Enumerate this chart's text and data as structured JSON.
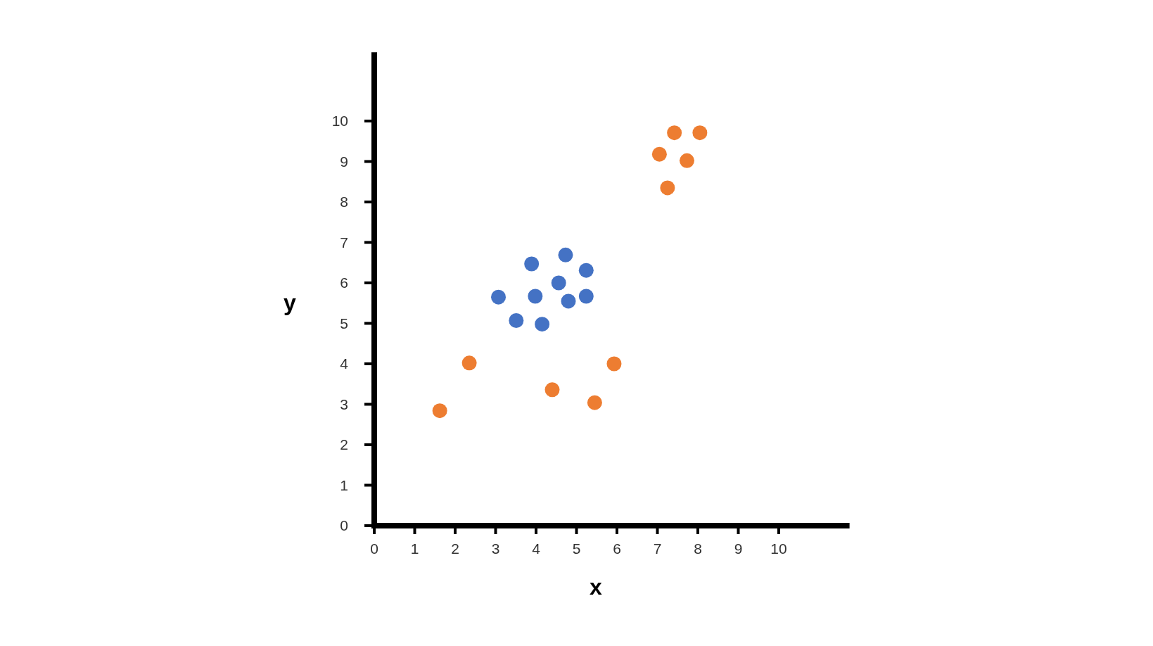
{
  "chart_data": {
    "type": "scatter",
    "xlabel": "x",
    "ylabel": "y",
    "xlim": [
      0,
      11.75
    ],
    "ylim": [
      0,
      11.7
    ],
    "xticks": [
      0,
      1,
      2,
      3,
      4,
      5,
      6,
      7,
      8,
      9,
      10
    ],
    "yticks": [
      0,
      1,
      2,
      3,
      4,
      5,
      6,
      7,
      8,
      9,
      10
    ],
    "grid": false,
    "marker": "circle",
    "series": [
      {
        "color": "#4472c4",
        "x": [
          3.07,
          3.89,
          4.73,
          5.24,
          4.56,
          3.98,
          5.24,
          4.8,
          3.51,
          4.15
        ],
        "values": [
          5.65,
          6.47,
          6.69,
          6.31,
          6.0,
          5.67,
          5.67,
          5.55,
          5.07,
          4.98
        ]
      },
      {
        "color": "#ed7d31",
        "x": [
          1.62,
          2.35,
          4.4,
          5.45,
          5.93,
          7.05,
          7.42,
          8.05,
          7.73,
          7.25
        ],
        "values": [
          2.84,
          4.02,
          3.36,
          3.04,
          4.0,
          9.18,
          9.71,
          9.71,
          9.02,
          8.35
        ]
      }
    ]
  }
}
